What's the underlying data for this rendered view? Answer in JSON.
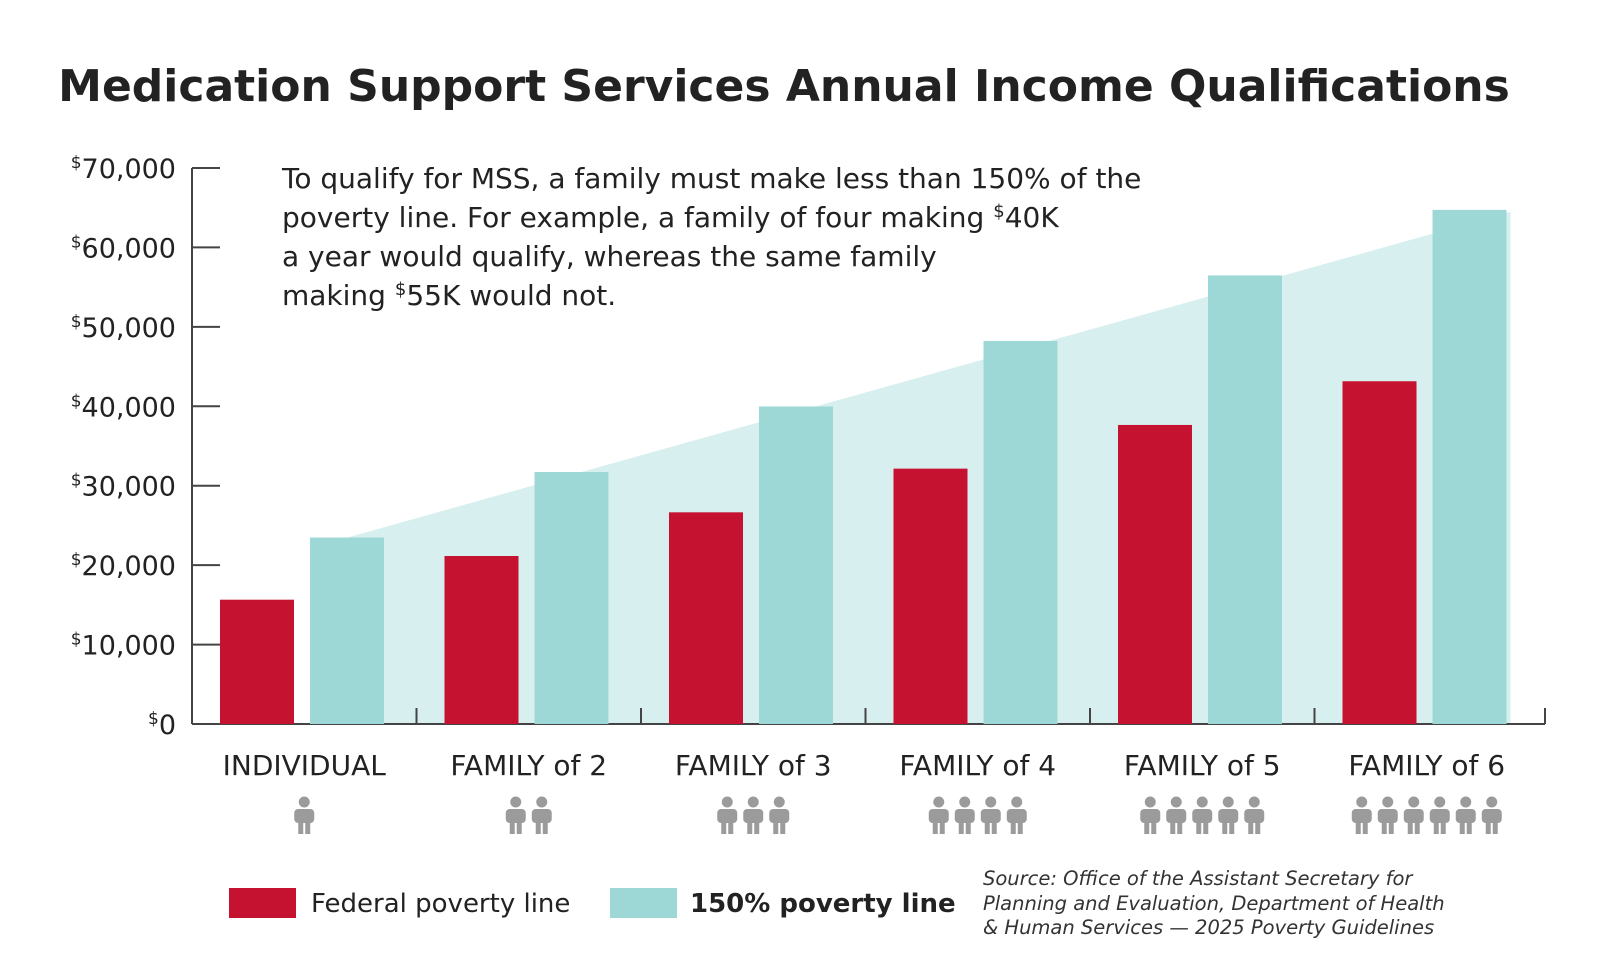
{
  "colors": {
    "federal": "#c41230",
    "poverty150": "#9ed8d6",
    "area": "#d8efef",
    "axis": "#444444",
    "icon": "#9b9b9b",
    "text": "#222222"
  },
  "chart_data": {
    "type": "bar",
    "title": "Medication Support Services Annual Income Qualifications",
    "xlabel": "",
    "ylabel": "",
    "ylim": [
      0,
      70000
    ],
    "yticks": [
      {
        "value": 0,
        "label": "$0"
      },
      {
        "value": 10000,
        "label": "$10,000"
      },
      {
        "value": 20000,
        "label": "$20,000"
      },
      {
        "value": 30000,
        "label": "$30,000"
      },
      {
        "value": 40000,
        "label": "$40,000"
      },
      {
        "value": 50000,
        "label": "$50,000"
      },
      {
        "value": 60000,
        "label": "$60,000"
      },
      {
        "value": 70000,
        "label": "$70,000"
      }
    ],
    "categories": [
      "INDIVIDUAL",
      "FAMILY of 2",
      "FAMILY of 3",
      "FAMILY of 4",
      "FAMILY of 5",
      "FAMILY of 6"
    ],
    "people_counts": [
      1,
      2,
      3,
      4,
      5,
      6
    ],
    "series": [
      {
        "name": "Federal poverty line",
        "color_key": "federal",
        "values": [
          15650,
          21150,
          26650,
          32150,
          37650,
          43150
        ]
      },
      {
        "name": "150% poverty line",
        "color_key": "poverty150",
        "values": [
          23475,
          31725,
          39975,
          48225,
          56475,
          64725
        ]
      }
    ],
    "grid": false,
    "legend_position": "bottom-left",
    "annotation": [
      "To qualify for MSS, a family must make less than 150% of the",
      "poverty line. For example, a family of four making $40K",
      "a year would qualify, whereas the same family",
      "making $55K would not."
    ],
    "source": [
      "Source: Office of the Assistant Secretary for",
      "Planning and Evaluation, Department of Health",
      "& Human Services — 2025 Poverty Guidelines"
    ]
  }
}
